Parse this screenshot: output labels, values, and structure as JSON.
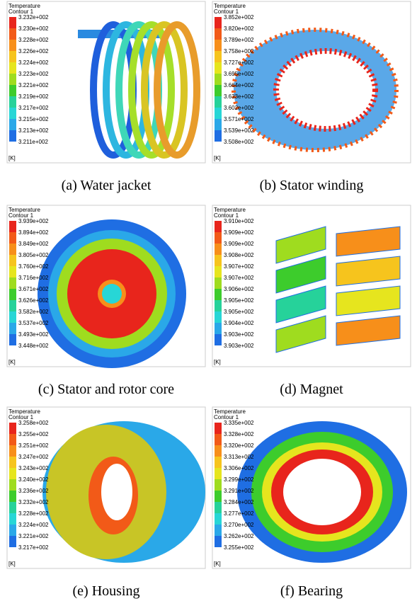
{
  "panels": [
    {
      "title": "Temperature",
      "subtitle": "Contour 1",
      "levels": [
        "3.232e+002",
        "3.230e+002",
        "3.228e+002",
        "3.226e+002",
        "3.224e+002",
        "3.223e+002",
        "3.221e+002",
        "3.219e+002",
        "3.217e+002",
        "3.215e+002",
        "3.213e+002",
        "3.211e+002"
      ],
      "unit": "[K]",
      "caption": "(a) Water jacket"
    },
    {
      "title": "Temperature",
      "subtitle": "Contour 1",
      "levels": [
        "3.852e+002",
        "3.820e+002",
        "3.789e+002",
        "3.758e+002",
        "3.727e+002",
        "3.695e+002",
        "3.664e+002",
        "3.633e+002",
        "3.602e+002",
        "3.571e+002",
        "3.539e+002",
        "3.508e+002"
      ],
      "unit": "[K]",
      "caption": "(b) Stator winding"
    },
    {
      "title": "Temperature",
      "subtitle": "Contour 1",
      "levels": [
        "3.939e+002",
        "3.894e+002",
        "3.849e+002",
        "3.805e+002",
        "3.760e+002",
        "3.716e+002",
        "3.671e+002",
        "3.626e+002",
        "3.582e+002",
        "3.537e+002",
        "3.493e+002",
        "3.448e+002"
      ],
      "unit": "[K]",
      "caption": "(c) Stator and rotor core"
    },
    {
      "title": "Temperature",
      "subtitle": "Contour 1",
      "levels": [
        "3.910e+002",
        "3.909e+002",
        "3.909e+002",
        "3.908e+002",
        "3.907e+002",
        "3.907e+002",
        "3.906e+002",
        "3.905e+002",
        "3.905e+002",
        "3.904e+002",
        "3.903e+002",
        "3.903e+002"
      ],
      "unit": "[K]",
      "caption": "(d) Magnet"
    },
    {
      "title": "Temperature",
      "subtitle": "Contour 1",
      "levels": [
        "3.258e+002",
        "3.255e+002",
        "3.251e+002",
        "3.247e+002",
        "3.243e+002",
        "3.240e+002",
        "3.236e+002",
        "3.232e+002",
        "3.228e+002",
        "3.224e+002",
        "3.221e+002",
        "3.217e+002"
      ],
      "unit": "[K]",
      "caption": "(e) Housing"
    },
    {
      "title": "Temperature",
      "subtitle": "Contour 1",
      "levels": [
        "3.335e+002",
        "3.328e+002",
        "3.320e+002",
        "3.313e+002",
        "3.306e+002",
        "3.299e+002",
        "3.291e+002",
        "3.284e+002",
        "3.277e+002",
        "3.270e+002",
        "3.262e+002",
        "3.255e+002"
      ],
      "unit": "[K]",
      "caption": "(f) Bearing"
    }
  ]
}
